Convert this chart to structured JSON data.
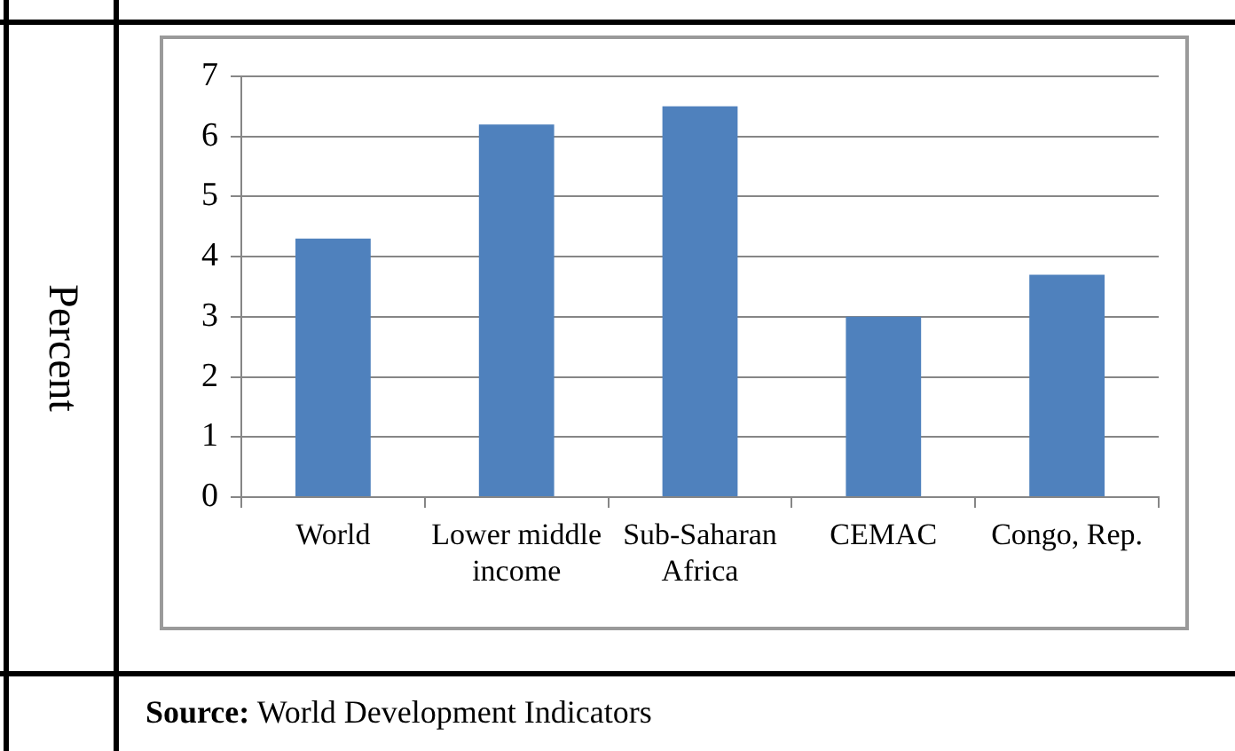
{
  "chart_data": {
    "type": "bar",
    "ylabel": "Percent",
    "categories": [
      "World",
      "Lower middle income",
      "Sub-Saharan Africa",
      "CEMAC",
      "Congo, Rep."
    ],
    "values": [
      4.3,
      6.2,
      6.5,
      3.0,
      3.7
    ],
    "color": "#4f81bd",
    "ylim": [
      0,
      7
    ],
    "yticks": [
      0,
      1,
      2,
      3,
      4,
      5,
      6,
      7
    ],
    "grid": "y",
    "annotations": [
      "Source: World Development Indicators"
    ]
  }
}
